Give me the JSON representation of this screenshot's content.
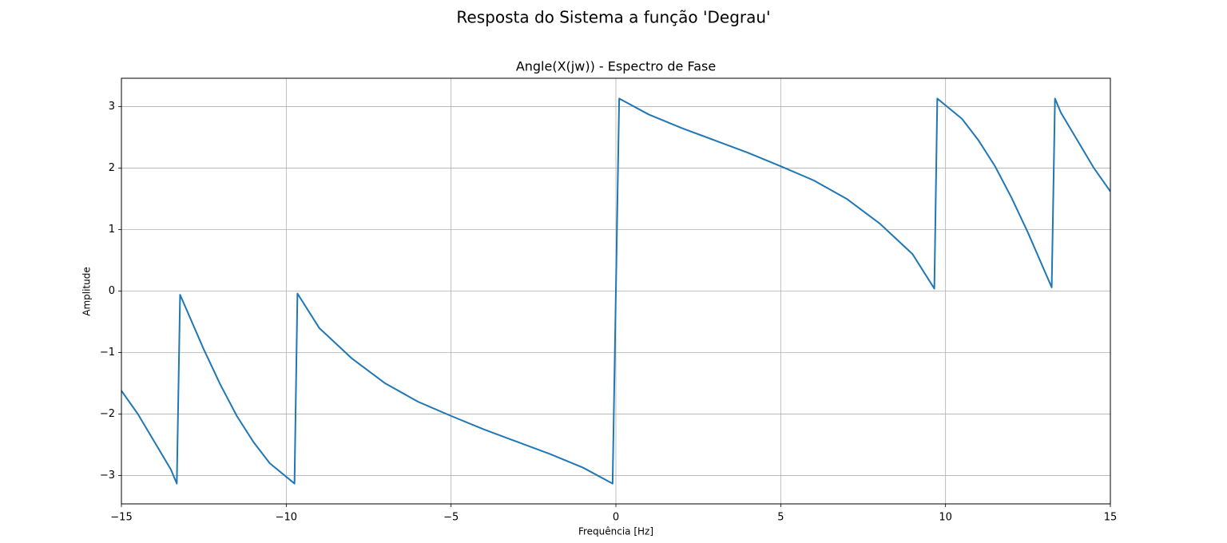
{
  "chart_data": {
    "type": "line",
    "suptitle": "Resposta do Sistema a função 'Degrau'",
    "title": "Angle(X(jw)) - Espectro de Fase",
    "xlabel": "Frequência [Hz]",
    "ylabel": "Amplitude",
    "x": [
      -15,
      -14.5,
      -14,
      -13.5,
      -13.32,
      -13.22,
      -12.5,
      -12,
      -11.5,
      -11,
      -10.5,
      -9.75,
      -9.66,
      -9,
      -8,
      -7,
      -6,
      -5,
      -4,
      -3,
      -2,
      -1,
      -0.1,
      0.1,
      1,
      2,
      3,
      4,
      5,
      6,
      7,
      8,
      9,
      9.66,
      9.75,
      10.5,
      11,
      11.5,
      12,
      12.5,
      13.22,
      13.32,
      13.5,
      14,
      14.5,
      15
    ],
    "values": [
      -1.62,
      -2.0,
      -2.45,
      -2.9,
      -3.13,
      -0.06,
      -0.95,
      -1.52,
      -2.03,
      -2.45,
      -2.8,
      -3.13,
      -0.04,
      -0.6,
      -1.1,
      -1.5,
      -1.8,
      -2.03,
      -2.25,
      -2.45,
      -2.65,
      -2.87,
      -3.13,
      3.13,
      2.87,
      2.65,
      2.45,
      2.25,
      2.03,
      1.8,
      1.5,
      1.1,
      0.6,
      0.04,
      3.13,
      2.8,
      2.45,
      2.03,
      1.52,
      0.95,
      0.06,
      3.13,
      2.9,
      2.45,
      2.0,
      1.62
    ],
    "color": "#1f77b4",
    "xlim": [
      -15,
      15
    ],
    "ylim": [
      -3.46,
      3.46
    ],
    "xticks": [
      {
        "value": -15,
        "label": "−15"
      },
      {
        "value": -10,
        "label": "−10"
      },
      {
        "value": -5,
        "label": "−5"
      },
      0,
      5,
      10,
      15
    ],
    "yticks": [
      {
        "value": -3,
        "label": "−3"
      },
      {
        "value": -2,
        "label": "−2"
      },
      {
        "value": -1,
        "label": "−1"
      },
      0,
      1,
      2,
      3
    ],
    "grid": true
  }
}
